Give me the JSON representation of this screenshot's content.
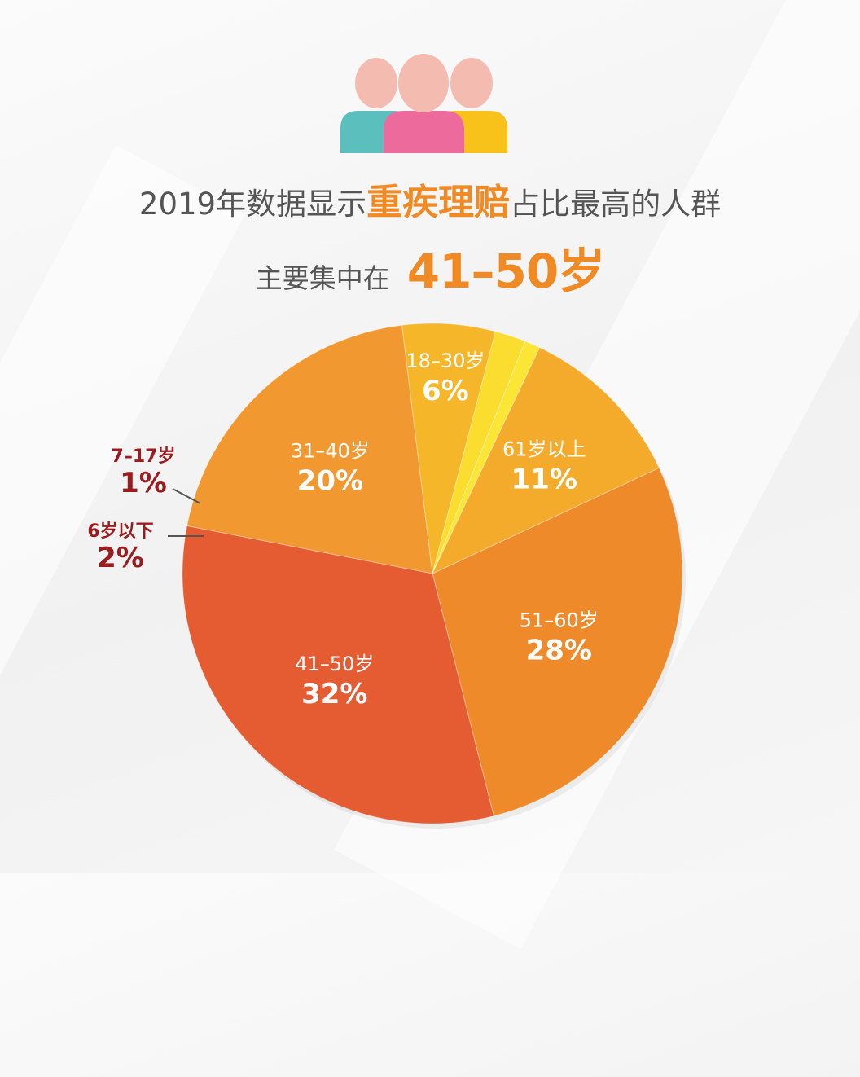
{
  "header": {
    "line1_prefix": "2019年数据显示",
    "line1_highlight": "重疾理赔",
    "line1_suffix": "占比最高的人群",
    "line2_prefix": "主要集中在",
    "line2_highlight": "41–50岁"
  },
  "icon": {
    "name": "people-group-icon",
    "colors": [
      "#f4bcb0",
      "#5bbfbd",
      "#ec6a9c",
      "#f8c21a"
    ]
  },
  "chart_data": {
    "type": "pie",
    "start_angle_deg": 0,
    "direction": "clockwise",
    "slices": [
      {
        "label": "51–60岁",
        "value": 28,
        "pct_label": "28%",
        "color": "#ef8a2b"
      },
      {
        "label": "41–50岁",
        "value": 32,
        "pct_label": "32%",
        "color": "#e65c32"
      },
      {
        "label": "31–40岁",
        "value": 20,
        "pct_label": "20%",
        "color": "#f29830"
      },
      {
        "label": "18–30岁",
        "value": 6,
        "pct_label": "6%",
        "color": "#f6b62a"
      },
      {
        "label": "6岁以下",
        "value": 2,
        "pct_label": "2%",
        "color": "#fadd2e"
      },
      {
        "label": "7–17岁",
        "value": 1,
        "pct_label": "1%",
        "color": "#fbe636"
      },
      {
        "label": "61岁以上",
        "value": 11,
        "pct_label": "11%",
        "color": "#f4ab2c"
      }
    ]
  }
}
